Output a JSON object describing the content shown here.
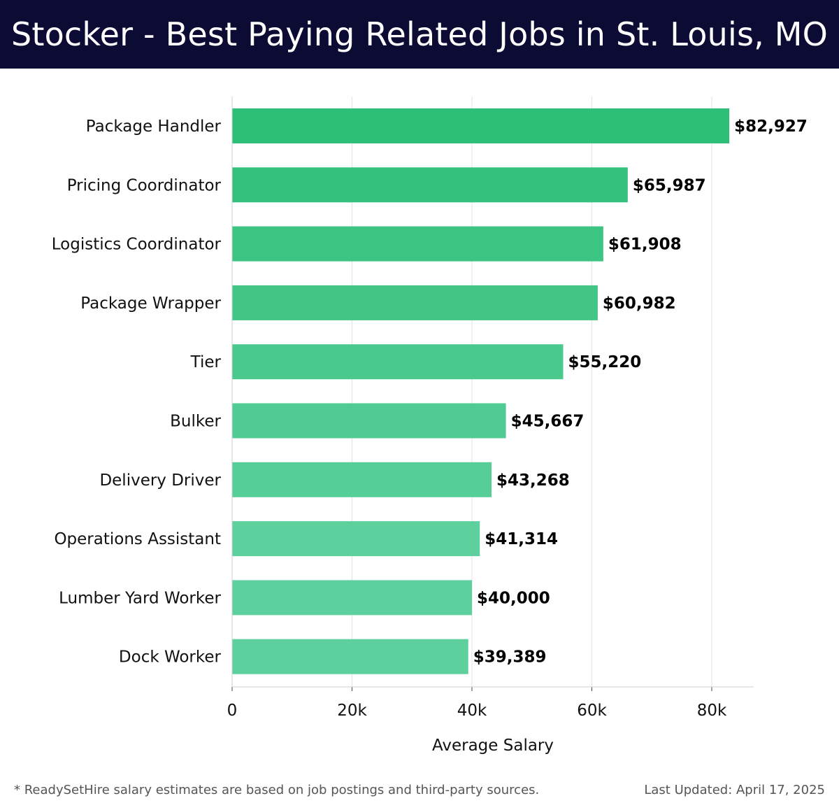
{
  "header": {
    "title": "Stocker - Best Paying Related Jobs in St. Louis, MO"
  },
  "colors": {
    "header_bg": "#0b0b33",
    "bar_top": "#2ebf77",
    "bar_bottom": "#5dd09e"
  },
  "chart_data": {
    "type": "bar",
    "orientation": "horizontal",
    "title": "Stocker - Best Paying Related Jobs in St. Louis, MO",
    "xlabel": "Average Salary",
    "ylabel": "",
    "xlim": [
      0,
      87500
    ],
    "xticks": [
      0,
      20000,
      40000,
      60000,
      80000
    ],
    "xtick_labels": [
      "0",
      "20k",
      "40k",
      "60k",
      "80k"
    ],
    "grid": true,
    "categories": [
      "Package Handler",
      "Pricing Coordinator",
      "Logistics Coordinator",
      "Package Wrapper",
      "Tier",
      "Bulker",
      "Delivery Driver",
      "Operations Assistant",
      "Lumber Yard Worker",
      "Dock Worker"
    ],
    "values": [
      82927,
      65987,
      61908,
      60982,
      55220,
      45667,
      43268,
      41314,
      40000,
      39389
    ],
    "value_labels": [
      "$82,927",
      "$65,987",
      "$61,908",
      "$60,982",
      "$55,220",
      "$45,667",
      "$43,268",
      "$41,314",
      "$40,000",
      "$39,389"
    ]
  },
  "footer": {
    "note": "* ReadySetHire salary estimates are based on job postings and third-party sources.",
    "updated": "Last Updated: April 17, 2025"
  }
}
